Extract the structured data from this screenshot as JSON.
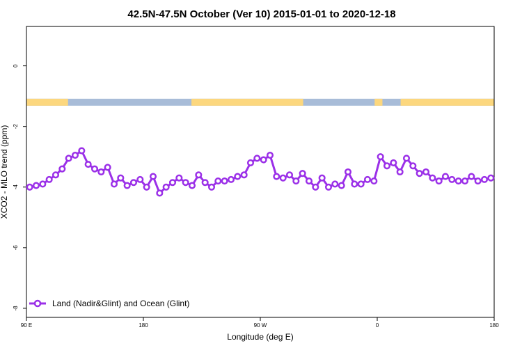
{
  "chart_data": {
    "type": "line",
    "title": "42.5N-47.5N October (Ver 10)   2015-01-01 to 2020-12-18",
    "xlabel": "Longitude (deg E)",
    "ylabel": "XCO2 - MLO trend (ppm)",
    "xlim": [
      90,
      450
    ],
    "ylim": [
      -8.3,
      1.3
    ],
    "x_ticks": [
      {
        "value": 90,
        "label": "90 E"
      },
      {
        "value": 180,
        "label": "180"
      },
      {
        "value": 270,
        "label": "90 W"
      },
      {
        "value": 360,
        "label": "0"
      },
      {
        "value": 450,
        "label": "180"
      }
    ],
    "y_ticks": [
      {
        "value": 0,
        "label": "0"
      },
      {
        "value": -2,
        "label": "-2"
      },
      {
        "value": -4,
        "label": "-4"
      },
      {
        "value": -6,
        "label": "-6"
      },
      {
        "value": -8,
        "label": "-8"
      }
    ],
    "grid": false,
    "legend_position": "bottom-left",
    "series": [
      {
        "name": "Land (Nadir&Glint) and Ocean (Glint)",
        "color": "#9b30e8",
        "x": [
          92.5,
          97.5,
          102.5,
          107.5,
          112.5,
          117.5,
          122.5,
          127.5,
          132.5,
          137.5,
          142.5,
          147.5,
          152.5,
          157.5,
          162.5,
          167.5,
          172.5,
          177.5,
          182.5,
          187.5,
          192.5,
          197.5,
          202.5,
          207.5,
          212.5,
          217.5,
          222.5,
          227.5,
          232.5,
          237.5,
          242.5,
          247.5,
          252.5,
          257.5,
          262.5,
          267.5,
          272.5,
          277.5,
          282.5,
          287.5,
          292.5,
          297.5,
          302.5,
          307.5,
          312.5,
          317.5,
          322.5,
          327.5,
          332.5,
          337.5,
          342.5,
          347.5,
          352.5,
          357.5,
          362.5,
          367.5,
          372.5,
          377.5,
          382.5,
          387.5,
          392.5,
          397.5,
          402.5,
          407.5,
          412.5,
          417.5,
          422.5,
          427.5,
          432.5,
          437.5,
          442.5,
          447.5
        ],
        "y": [
          -4.0,
          -3.95,
          -3.9,
          -3.75,
          -3.6,
          -3.4,
          -3.05,
          -2.95,
          -2.8,
          -3.25,
          -3.4,
          -3.5,
          -3.35,
          -3.9,
          -3.7,
          -3.95,
          -3.85,
          -3.75,
          -4.0,
          -3.65,
          -4.2,
          -4.0,
          -3.85,
          -3.7,
          -3.85,
          -3.95,
          -3.6,
          -3.85,
          -4.0,
          -3.8,
          -3.8,
          -3.75,
          -3.65,
          -3.6,
          -3.2,
          -3.05,
          -3.1,
          -2.95,
          -3.65,
          -3.7,
          -3.6,
          -3.8,
          -3.55,
          -3.8,
          -4.0,
          -3.7,
          -4.0,
          -3.9,
          -3.95,
          -3.5,
          -3.9,
          -3.9,
          -3.75,
          -3.8,
          -3.0,
          -3.3,
          -3.2,
          -3.5,
          -3.05,
          -3.3,
          -3.55,
          -3.5,
          -3.7,
          -3.8,
          -3.65,
          -3.75,
          -3.8,
          -3.8,
          -3.65,
          -3.8,
          -3.75,
          -3.7
        ]
      }
    ],
    "land_ocean_bar": {
      "y": -1.2,
      "land_color": "#fcd77e",
      "ocean_color": "#a8bcd8"
    }
  }
}
